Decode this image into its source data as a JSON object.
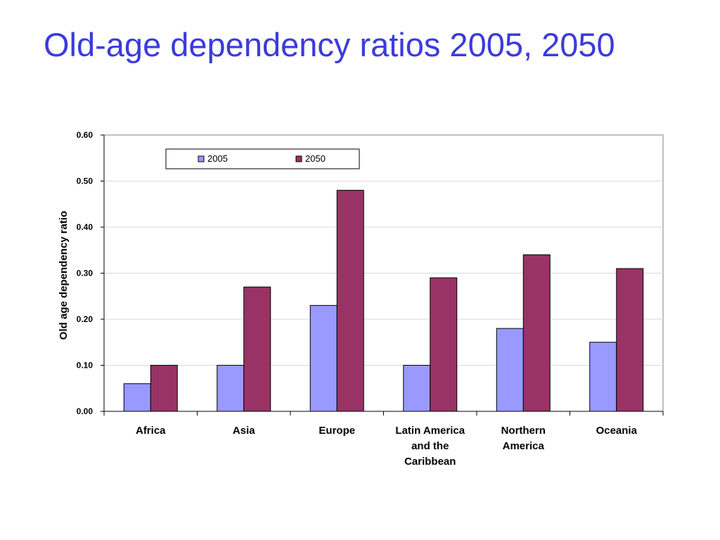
{
  "title": "Old-age dependency ratios 2005, 2050",
  "chart_data": {
    "type": "bar",
    "categories": [
      [
        "Africa"
      ],
      [
        "Asia"
      ],
      [
        "Europe"
      ],
      [
        "Latin America",
        "and the",
        "Caribbean"
      ],
      [
        "Northern",
        "America"
      ],
      [
        "Oceania"
      ]
    ],
    "series": [
      {
        "name": "2005",
        "color": "#9999ff",
        "values": [
          0.06,
          0.1,
          0.23,
          0.1,
          0.18,
          0.15
        ]
      },
      {
        "name": "2050",
        "color": "#993366",
        "values": [
          0.1,
          0.27,
          0.48,
          0.29,
          0.34,
          0.31
        ]
      }
    ],
    "ylabel": "Old age dependency ratio",
    "xlabel": "",
    "ylim": [
      0,
      0.6
    ],
    "yticks": [
      "0.00",
      "0.10",
      "0.20",
      "0.30",
      "0.40",
      "0.50",
      "0.60"
    ],
    "grid": true,
    "legend": "top-left inside plot"
  }
}
